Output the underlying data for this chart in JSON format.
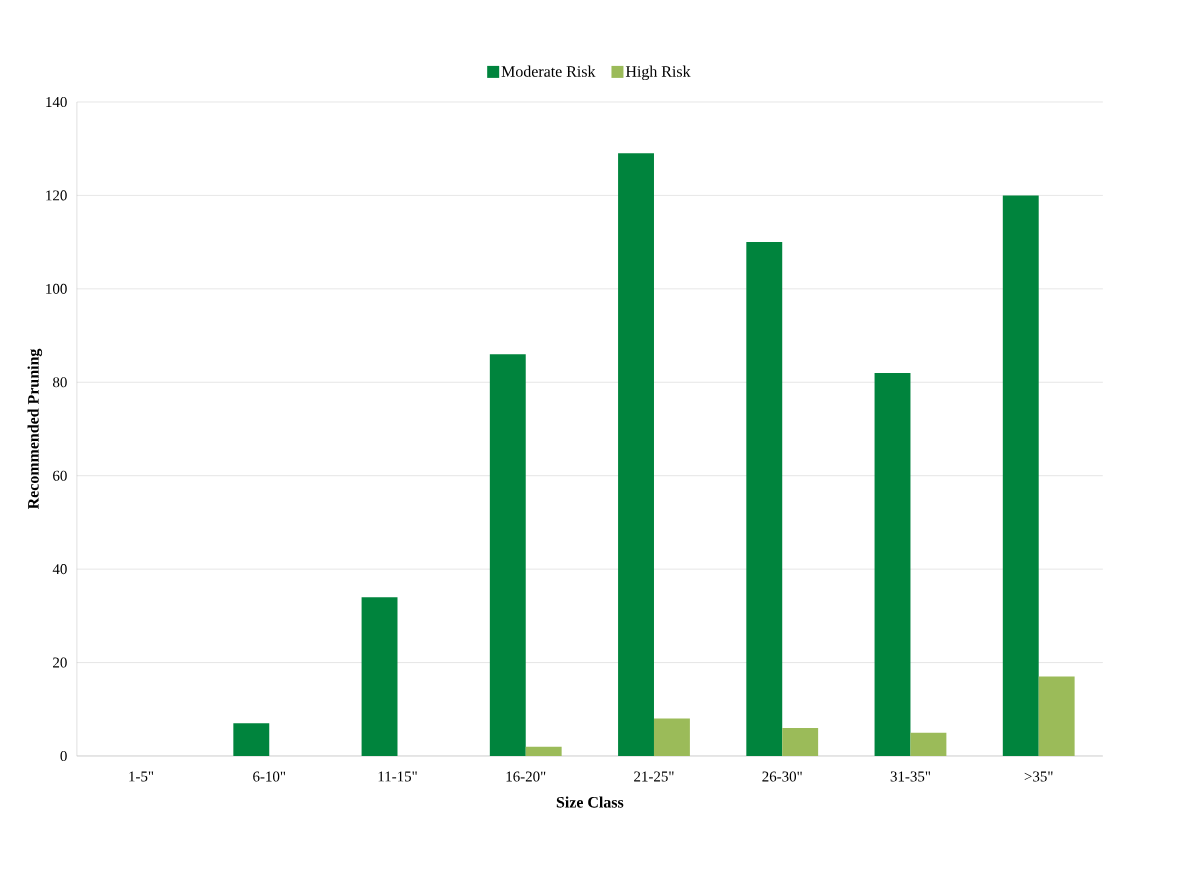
{
  "chart_data": {
    "type": "bar",
    "xlabel": "Size Class",
    "ylabel": "Recommended Pruning",
    "categories": [
      "1-5\"",
      "6-10\"",
      "11-15\"",
      "16-20\"",
      "21-25\"",
      "26-30\"",
      "31-35\"",
      ">35\""
    ],
    "series": [
      {
        "name": "Moderate Risk",
        "color": "#00843d",
        "values": [
          0,
          7,
          34,
          86,
          129,
          110,
          82,
          120
        ]
      },
      {
        "name": "High Risk",
        "color": "#9bbb59",
        "values": [
          0,
          0,
          0,
          2,
          8,
          6,
          5,
          17
        ]
      }
    ],
    "ylim": [
      0,
      140
    ],
    "yticks": [
      0,
      20,
      40,
      60,
      80,
      100,
      120,
      140
    ],
    "grid": "y",
    "legend": "top"
  }
}
